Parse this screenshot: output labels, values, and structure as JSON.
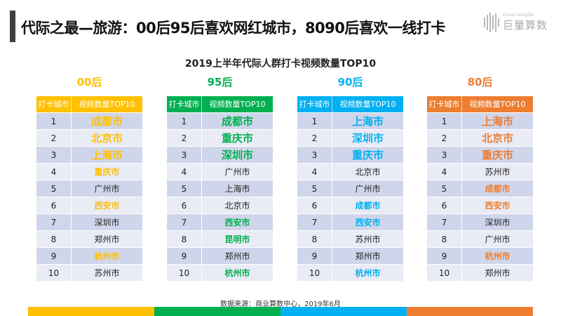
{
  "header": {
    "title": "代际之最—旅游：00后95后喜欢网红城市，8090后喜欢一线打卡",
    "logo_sub": "Ocean Insights",
    "logo_main": "巨量算数"
  },
  "subtitle": "2019上半年代际人群打卡视频数量TOP10",
  "col_headers": [
    "打卡城市",
    "视频数量TOP10"
  ],
  "groups": [
    {
      "label": "00后",
      "color": "#ffc000",
      "cities": [
        "成都市",
        "北京市",
        "上海市",
        "重庆市",
        "广州市",
        "西安市",
        "深圳市",
        "郑州市",
        "杭州市",
        "苏州市"
      ],
      "highlight": [
        1,
        2,
        3,
        4,
        6,
        9
      ]
    },
    {
      "label": "95后",
      "color": "#00b050",
      "cities": [
        "成都市",
        "重庆市",
        "深圳市",
        "广州市",
        "上海市",
        "北京市",
        "西安市",
        "昆明市",
        "郑州市",
        "杭州市"
      ],
      "highlight": [
        1,
        2,
        3,
        7,
        8,
        10
      ]
    },
    {
      "label": "90后",
      "color": "#00b0f0",
      "cities": [
        "上海市",
        "深圳市",
        "重庆市",
        "北京市",
        "广州市",
        "成都市",
        "西安市",
        "苏州市",
        "郑州市",
        "杭州市"
      ],
      "highlight": [
        1,
        2,
        3,
        6,
        7,
        10
      ]
    },
    {
      "label": "80后",
      "color": "#ed7d31",
      "cities": [
        "上海市",
        "北京市",
        "重庆市",
        "苏州市",
        "成都市",
        "西安市",
        "深圳市",
        "广州市",
        "杭州市",
        "郑州市"
      ],
      "highlight": [
        1,
        2,
        3,
        5,
        6,
        9
      ]
    }
  ],
  "source": "数据来源：商业算数中心，2019年6月"
}
